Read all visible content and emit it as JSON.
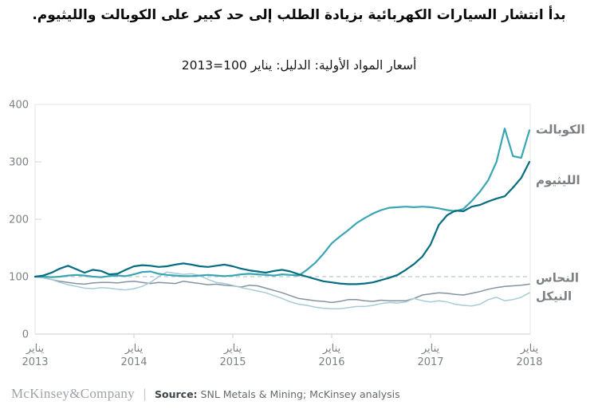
{
  "title": "بدأ انتشار السيارات الكهربائية بزيادة الطلب إلى حد كبير على الكوبالت والليثيوم.",
  "subtitle": "أسعار المواد الأولية: الدليل: يناير 100=2013",
  "footer": {
    "brand": "McKinsey&Company",
    "separator": "|",
    "source_label": "Source:",
    "source_text": " SNL Metals & Mining; McKinsey analysis"
  },
  "colors": {
    "border": "#E1E5E8",
    "axis": "#C9CED3",
    "minor_tick": "#D5D9DC",
    "baseline_dash": "#BAC6CE",
    "tick_text": "#7C8186",
    "series_label_text": "#7C8084"
  },
  "chart_data": {
    "type": "line",
    "index_note": "يناير 2013 = 100",
    "x_unit": "month",
    "x_start": "2013-01",
    "x_end": "2018-01",
    "points_per_series": 61,
    "x_tick_month_word": "يناير",
    "x_tick_years": [
      "2013",
      "2014",
      "2015",
      "2016",
      "2017",
      "2018"
    ],
    "y_ticks": [
      400,
      300,
      200,
      100,
      0
    ],
    "y_minor_ticks": [
      300,
      200
    ],
    "ylim": [
      0,
      400
    ],
    "baseline": 100,
    "grid": "off",
    "legend_position": "right-end-labels",
    "series": [
      {
        "id": "cobalt",
        "label": "الكوبالت",
        "color": "#3AA6B3",
        "stroke_width": 2.2,
        "label_at_value": 356,
        "values": [
          100,
          100,
          99,
          100,
          102,
          103,
          102,
          100,
          99,
          101,
          102,
          101,
          104,
          108,
          109,
          105,
          103,
          102,
          101,
          101,
          102,
          103,
          102,
          101,
          102,
          104,
          105,
          104,
          103,
          102,
          104,
          103,
          102,
          112,
          124,
          140,
          158,
          170,
          181,
          193,
          202,
          210,
          216,
          220,
          221,
          222,
          221,
          222,
          221,
          219,
          216,
          214,
          218,
          232,
          248,
          268,
          300,
          358,
          310,
          307,
          355
        ]
      },
      {
        "id": "lithium",
        "label": "الليثيوم",
        "color": "#046E80",
        "stroke_width": 2.2,
        "label_at_value": 268,
        "values": [
          100,
          102,
          107,
          114,
          119,
          113,
          107,
          112,
          110,
          104,
          105,
          112,
          118,
          120,
          119,
          117,
          118,
          121,
          123,
          121,
          118,
          117,
          119,
          121,
          118,
          114,
          111,
          109,
          107,
          110,
          112,
          109,
          104,
          100,
          96,
          92,
          90,
          88,
          87,
          87,
          88,
          90,
          94,
          98,
          103,
          112,
          122,
          135,
          156,
          190,
          207,
          215,
          214,
          222,
          225,
          231,
          236,
          240,
          255,
          272,
          300
        ]
      },
      {
        "id": "copper",
        "label": "النحاس",
        "color": "#8593A0",
        "stroke_width": 1.5,
        "label_at_value": 98,
        "values": [
          100,
          98,
          95,
          92,
          90,
          88,
          87,
          89,
          90,
          90,
          89,
          91,
          92,
          90,
          88,
          90,
          89,
          88,
          92,
          90,
          88,
          86,
          87,
          85,
          84,
          82,
          85,
          84,
          80,
          76,
          72,
          67,
          62,
          60,
          58,
          57,
          55,
          57,
          60,
          60,
          58,
          57,
          59,
          58,
          58,
          58,
          62,
          68,
          70,
          72,
          71,
          69,
          68,
          71,
          74,
          78,
          81,
          83,
          84,
          85,
          87
        ]
      },
      {
        "id": "nickel",
        "label": "النيكل",
        "color": "#A7CBD6",
        "stroke_width": 1.5,
        "label_at_value": 66,
        "values": [
          100,
          98,
          95,
          90,
          86,
          83,
          80,
          79,
          81,
          80,
          78,
          77,
          79,
          83,
          90,
          100,
          108,
          106,
          104,
          105,
          102,
          95,
          90,
          88,
          85,
          81,
          78,
          75,
          72,
          67,
          62,
          56,
          52,
          50,
          47,
          45,
          44,
          44,
          46,
          48,
          48,
          50,
          53,
          55,
          54,
          56,
          62,
          58,
          56,
          58,
          56,
          52,
          50,
          49,
          52,
          60,
          64,
          58,
          60,
          64,
          72
        ]
      }
    ]
  }
}
